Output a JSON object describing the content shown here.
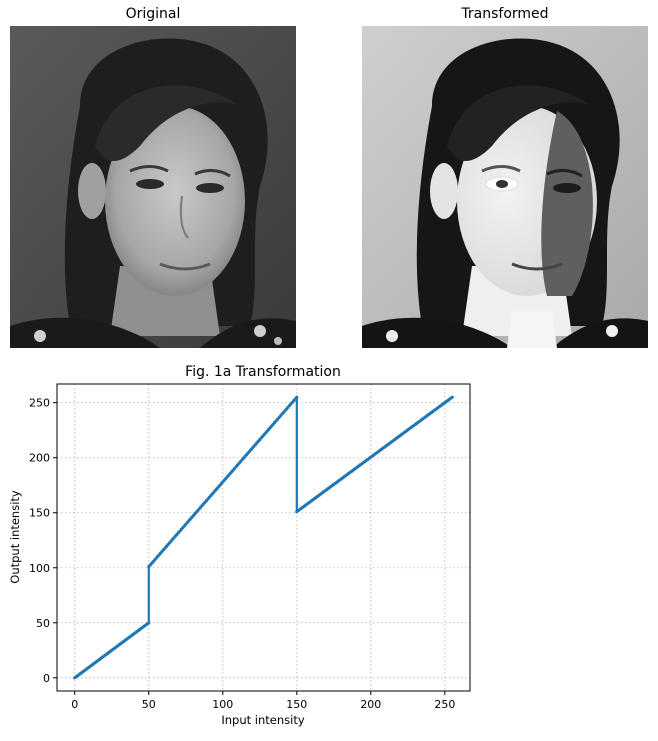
{
  "panels": {
    "original": {
      "title": "Original"
    },
    "transformed": {
      "title": "Transformed"
    }
  },
  "chart_data": {
    "type": "line",
    "title": "Fig. 1a Transformation",
    "xlabel": "Input intensity",
    "ylabel": "Output intensity",
    "xlim": [
      -12,
      267
    ],
    "ylim": [
      -12,
      267
    ],
    "x_ticks": [
      0,
      50,
      100,
      150,
      200,
      250
    ],
    "y_ticks": [
      0,
      50,
      100,
      150,
      200,
      250
    ],
    "grid": true,
    "grid_style": "dotted",
    "series_color": "#1f77b4",
    "segments": [
      {
        "x": [
          0,
          50
        ],
        "y": [
          0,
          50
        ]
      },
      {
        "x": [
          50,
          50
        ],
        "y": [
          50,
          101
        ]
      },
      {
        "x": [
          50,
          150
        ],
        "y": [
          101,
          255
        ]
      },
      {
        "x": [
          150,
          150
        ],
        "y": [
          255,
          151
        ]
      },
      {
        "x": [
          150,
          255
        ],
        "y": [
          151,
          255
        ]
      }
    ],
    "x": [
      0,
      50,
      50,
      150,
      150,
      255
    ],
    "y": [
      0,
      50,
      101,
      255,
      151,
      255
    ]
  }
}
